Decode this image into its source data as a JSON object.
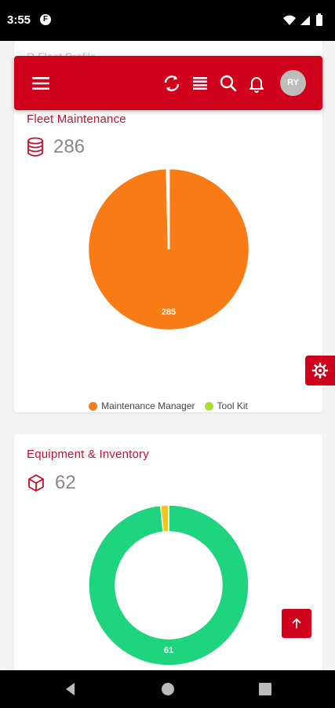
{
  "status_bar": {
    "time": "3:55",
    "app_icon_letter": "F"
  },
  "hidden_card": {
    "title": "R Fleet Profile"
  },
  "header": {
    "avatar_initials": "RY",
    "accent_color": "#d0021b"
  },
  "fleet_card": {
    "title": "Fleet Maintenance",
    "count": "286",
    "icon": "database-icon",
    "chart_data": {
      "type": "pie",
      "series": [
        {
          "name": "Maintenance Manager",
          "value": 285,
          "color": "#f97b16"
        },
        {
          "name": "Tool Kit",
          "value": 1,
          "color": "#a6e22e"
        }
      ],
      "data_label": "285"
    },
    "legend": [
      "Maintenance Manager",
      "Tool Kit"
    ]
  },
  "equipment_card": {
    "title": "Equipment & Inventory",
    "count": "62",
    "icon": "box-icon",
    "chart_data": {
      "type": "pie",
      "donut": true,
      "series": [
        {
          "value": 61,
          "color": "#1fd47e"
        },
        {
          "value": 1,
          "color": "#f5c518"
        }
      ],
      "data_label": "61"
    }
  }
}
